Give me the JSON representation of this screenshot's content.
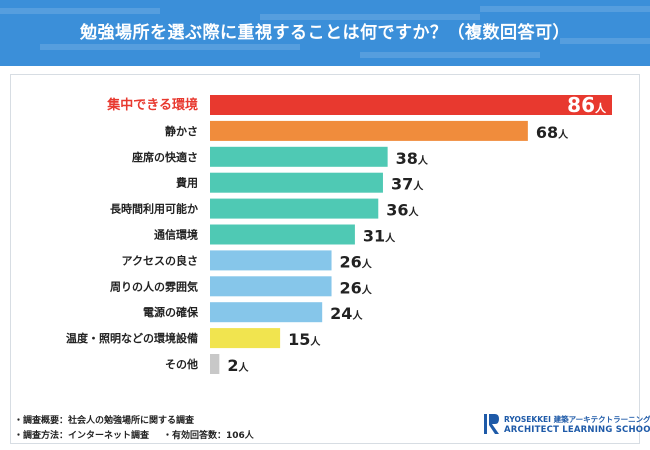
{
  "header": {
    "title": "勉強場所を選ぶ際に重視することは何ですか？（複数回答可）"
  },
  "colors": {
    "header": "#3b8fd9",
    "highlight": "#e8392f",
    "second": "#f08c3c",
    "teal": "#4fc9b4",
    "blue": "#86c6ea",
    "yellow": "#f1e44f",
    "gray": "#c8c8c8"
  },
  "chart_data": {
    "type": "bar",
    "orientation": "horizontal",
    "title": "勉強場所を選ぶ際に重視することは何ですか？（複数回答可）",
    "unit": "人",
    "xlim": [
      0,
      86
    ],
    "categories": [
      "集中できる環境",
      "静かさ",
      "座席の快適さ",
      "費用",
      "長時間利用可能か",
      "通信環境",
      "アクセスの良さ",
      "周りの人の雰囲気",
      "電源の確保",
      "温度・照明などの環境設備",
      "その他"
    ],
    "values": [
      86,
      68,
      38,
      37,
      36,
      31,
      26,
      26,
      24,
      15,
      2
    ],
    "bar_colors": [
      "#e8392f",
      "#f08c3c",
      "#4fc9b4",
      "#4fc9b4",
      "#4fc9b4",
      "#4fc9b4",
      "#86c6ea",
      "#86c6ea",
      "#86c6ea",
      "#f1e44f",
      "#c8c8c8"
    ]
  },
  "footnotes": {
    "survey_overview": "・調査概要：社会人の勉強場所に関する調査",
    "survey_method": "・調査方法：インターネット調査",
    "respondents": "・有効回答数：106人"
  },
  "logo": {
    "line1": "RYOSEKKEI 建築アーキテクトラーニング",
    "line2": "ARCHITECT LEARNING SCHOOL"
  }
}
